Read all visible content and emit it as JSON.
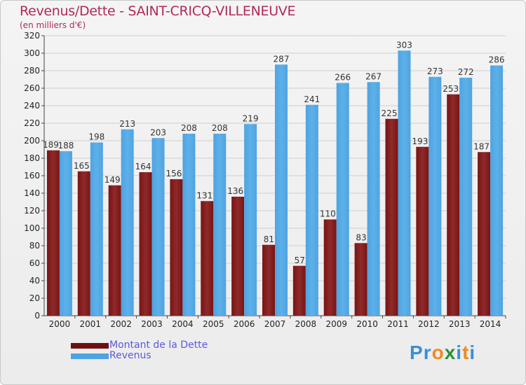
{
  "header": {
    "title": "Revenus/Dette - SAINT-CRICQ-VILLENEUVE",
    "subtitle": "(en milliers d'€)"
  },
  "colors": {
    "debt": "#7a1414",
    "debt_light": "#8e2a2a",
    "revenue": "#4fa3e0",
    "revenue_light": "#5cb1ea",
    "grid": "#cfcfcf",
    "title": "#b02a55",
    "legend_text": "#5a5adc"
  },
  "legend": {
    "items": [
      {
        "label": "Montant de la Dette",
        "color": "#6e1010"
      },
      {
        "label": "Revenus",
        "color": "#4fa3e0"
      }
    ]
  },
  "logo": {
    "letters": [
      "P",
      "r",
      "o",
      "x",
      "i",
      "t",
      "i"
    ],
    "letter_colors": [
      "#3b8fd6",
      "#3b8fd6",
      "#f08a1c",
      "#2a8f3a",
      "#3b8fd6",
      "#f08a1c",
      "#3b8fd6"
    ]
  },
  "chart_data": {
    "type": "bar",
    "title": "Revenus/Dette - SAINT-CRICQ-VILLENEUVE",
    "ylabel": "(en milliers d'€)",
    "xlabel": "",
    "ylim": [
      0,
      320
    ],
    "ytick_step": 20,
    "grid": true,
    "legend_position": "bottom-left",
    "categories": [
      "2000",
      "2001",
      "2002",
      "2003",
      "2004",
      "2005",
      "2006",
      "2007",
      "2008",
      "2009",
      "2010",
      "2011",
      "2012",
      "2013",
      "2014"
    ],
    "series": [
      {
        "name": "Montant de la Dette",
        "values": [
          189,
          165,
          149,
          164,
          156,
          131,
          136,
          81,
          57,
          110,
          83,
          225,
          193,
          253,
          187
        ]
      },
      {
        "name": "Revenus",
        "values": [
          188,
          198,
          213,
          203,
          208,
          208,
          219,
          287,
          241,
          266,
          267,
          303,
          273,
          272,
          286
        ]
      }
    ]
  }
}
